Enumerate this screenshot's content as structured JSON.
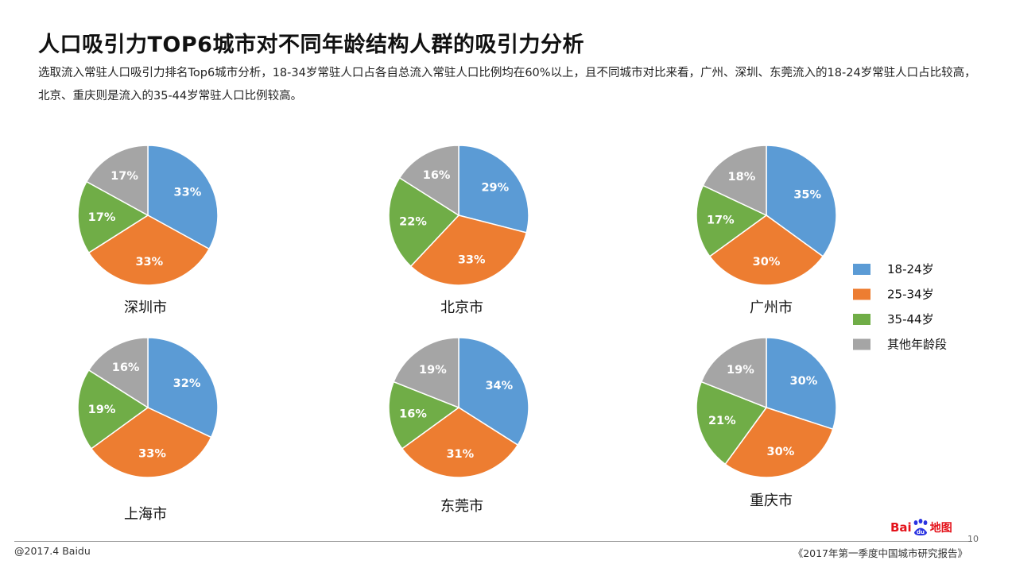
{
  "header": {
    "title": "人口吸引力TOP6城市对不同年龄结构人群的吸引力分析",
    "subtitle": "选取流入常驻人口吸引力排名Top6城市分析，18-34岁常驻人口占各自总流入常驻人口比例均在60%以上，且不同城市对比来看，广州、深圳、东莞流入的18-24岁常驻人口占比较高，北京、重庆则是流入的35-44岁常驻人口比例较高。"
  },
  "footer": {
    "copyright": "@2017.4 Baidu",
    "report": "《2017年第一季度中国城市研究报告》",
    "page_number": "10",
    "logo": {
      "bai_text": "Bai",
      "du_text": "du",
      "map_text": "地图"
    }
  },
  "legend": [
    "18-24岁",
    "25-34岁",
    "35-44岁",
    "其他年龄段"
  ],
  "colors": [
    "#5b9bd5",
    "#ed7d31",
    "#70ad47",
    "#a5a5a5"
  ],
  "chart_data": [
    {
      "type": "pie",
      "title": "深圳市",
      "categories": [
        "18-24岁",
        "25-34岁",
        "35-44岁",
        "其他年龄段"
      ],
      "values": [
        33,
        33,
        17,
        17
      ]
    },
    {
      "type": "pie",
      "title": "北京市",
      "categories": [
        "18-24岁",
        "25-34岁",
        "35-44岁",
        "其他年龄段"
      ],
      "values": [
        29,
        33,
        22,
        16
      ]
    },
    {
      "type": "pie",
      "title": "广州市",
      "categories": [
        "18-24岁",
        "25-34岁",
        "35-44岁",
        "其他年龄段"
      ],
      "values": [
        35,
        30,
        17,
        18
      ]
    },
    {
      "type": "pie",
      "title": "上海市",
      "categories": [
        "18-24岁",
        "25-34岁",
        "35-44岁",
        "其他年龄段"
      ],
      "values": [
        32,
        33,
        19,
        16
      ]
    },
    {
      "type": "pie",
      "title": "东莞市",
      "categories": [
        "18-24岁",
        "25-34岁",
        "35-44岁",
        "其他年龄段"
      ],
      "values": [
        34,
        31,
        16,
        19
      ]
    },
    {
      "type": "pie",
      "title": "重庆市",
      "categories": [
        "18-24岁",
        "25-34岁",
        "35-44岁",
        "其他年龄段"
      ],
      "values": [
        30,
        30,
        21,
        19
      ]
    }
  ]
}
